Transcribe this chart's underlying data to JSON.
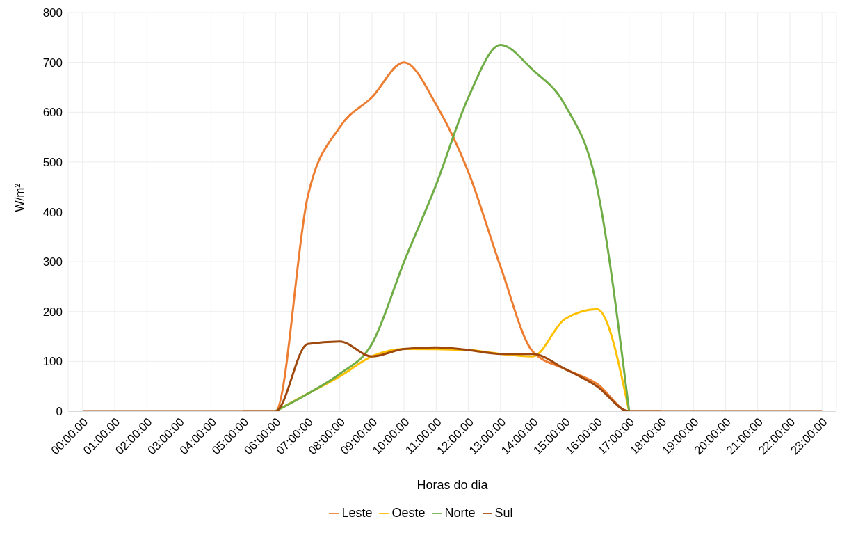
{
  "chart_data": {
    "type": "line",
    "xlabel": "Horas do dia",
    "ylabel": "W/m²",
    "categories": [
      "00:00:00",
      "01:00:00",
      "02:00:00",
      "03:00:00",
      "04:00:00",
      "05:00:00",
      "06:00:00",
      "07:00:00",
      "08:00:00",
      "09:00:00",
      "10:00:00",
      "11:00:00",
      "12:00:00",
      "13:00:00",
      "14:00:00",
      "15:00:00",
      "16:00:00",
      "17:00:00",
      "18:00:00",
      "19:00:00",
      "20:00:00",
      "21:00:00",
      "22:00:00",
      "23:00:00"
    ],
    "series": [
      {
        "name": "Leste",
        "color": "#ed7d31",
        "values": [
          null,
          null,
          null,
          null,
          null,
          0,
          0,
          430,
          570,
          630,
          700,
          615,
          480,
          290,
          120,
          85,
          55,
          0,
          0,
          null,
          null,
          null,
          null,
          null
        ]
      },
      {
        "name": "Oeste",
        "color": "#ffc000",
        "values": [
          null,
          null,
          null,
          null,
          null,
          null,
          0,
          35,
          70,
          110,
          125,
          null,
          123,
          115,
          110,
          185,
          205,
          0,
          null,
          null,
          null,
          null,
          null,
          null
        ]
      },
      {
        "name": "Norte",
        "color": "#70ad47",
        "values": [
          null,
          null,
          null,
          null,
          null,
          null,
          0,
          35,
          75,
          135,
          300,
          455,
          630,
          735,
          685,
          615,
          450,
          0,
          null,
          null,
          null,
          null,
          null,
          null
        ]
      },
      {
        "name": "Sul",
        "color": "#9e480e",
        "values": [
          0,
          0,
          0,
          0,
          0,
          0,
          0,
          135,
          140,
          110,
          125,
          128,
          123,
          115,
          115,
          85,
          50,
          0,
          0,
          0,
          0,
          0,
          0,
          0
        ]
      }
    ],
    "ylim": [
      0,
      800
    ],
    "yticks": [
      0,
      100,
      200,
      300,
      400,
      500,
      600,
      700,
      800
    ],
    "grid": true,
    "legend": "bottom",
    "marker": "none",
    "line_style": "solid"
  }
}
